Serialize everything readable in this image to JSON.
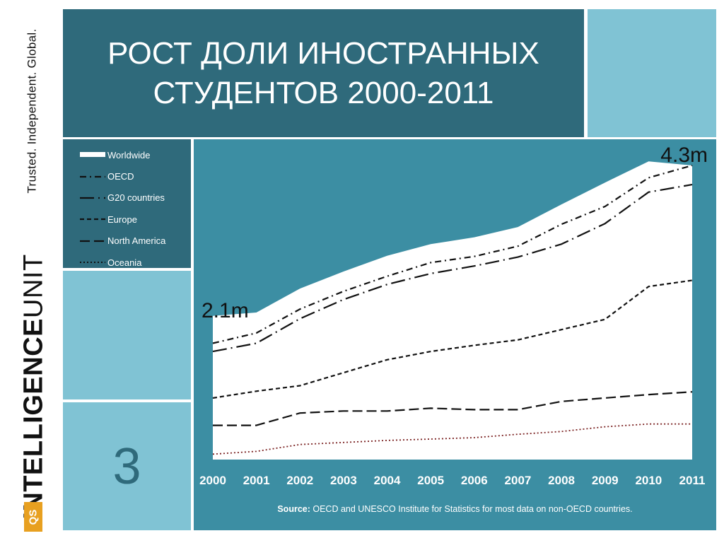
{
  "tagline": "Trusted. Independent. Global.",
  "brand": {
    "strong": "INTELLIGENCE",
    "light": "UNIT",
    "logo_text": "QS"
  },
  "title": "РОСТ ДОЛИ ИНОСТРАННЫХ СТУДЕНТОВ 2000-2011",
  "page_number": "3",
  "source": {
    "label": "Source:",
    "text": "OECD and UNESCO Institute for Statistics for most data on non-OECD countries."
  },
  "colors": {
    "dark_teal": "#2f6a7b",
    "light_teal": "#80c3d4",
    "chart_bg": "#3c8ea3",
    "fill": "#ffffff",
    "oceania": "#7a2020"
  },
  "chart_data": {
    "type": "line",
    "x": [
      2000,
      2001,
      2002,
      2003,
      2004,
      2005,
      2006,
      2007,
      2008,
      2009,
      2010,
      2011
    ],
    "ylim": [
      0,
      4.3
    ],
    "grid": false,
    "legend_position": "left-panel",
    "annotations": [
      {
        "text": "2.1m",
        "x": 2000,
        "y": 2.1
      },
      {
        "text": "4.3m",
        "x": 2011,
        "y": 4.3
      }
    ],
    "series": [
      {
        "name": "Worldwide",
        "style": "area",
        "values": [
          2.1,
          2.15,
          2.5,
          2.75,
          2.98,
          3.15,
          3.25,
          3.4,
          3.73,
          4.05,
          4.36,
          4.3
        ]
      },
      {
        "name": "OECD",
        "style": "dashdot",
        "values": [
          1.7,
          1.85,
          2.2,
          2.46,
          2.68,
          2.88,
          2.97,
          3.12,
          3.44,
          3.7,
          4.12,
          4.3
        ]
      },
      {
        "name": "G20 countries",
        "style": "longdashdot",
        "values": [
          1.58,
          1.7,
          2.06,
          2.34,
          2.56,
          2.72,
          2.83,
          2.96,
          3.15,
          3.45,
          3.91,
          4.02
        ]
      },
      {
        "name": "Europe",
        "style": "dashed",
        "values": [
          0.9,
          1.0,
          1.08,
          1.27,
          1.46,
          1.58,
          1.67,
          1.75,
          1.9,
          2.05,
          2.53,
          2.62
        ]
      },
      {
        "name": "North America",
        "style": "longdash",
        "values": [
          0.5,
          0.5,
          0.68,
          0.71,
          0.71,
          0.75,
          0.73,
          0.73,
          0.85,
          0.9,
          0.95,
          0.99
        ]
      },
      {
        "name": "Oceania",
        "style": "dotted",
        "values": [
          0.08,
          0.12,
          0.22,
          0.25,
          0.28,
          0.3,
          0.32,
          0.37,
          0.41,
          0.48,
          0.52,
          0.52
        ]
      }
    ]
  }
}
